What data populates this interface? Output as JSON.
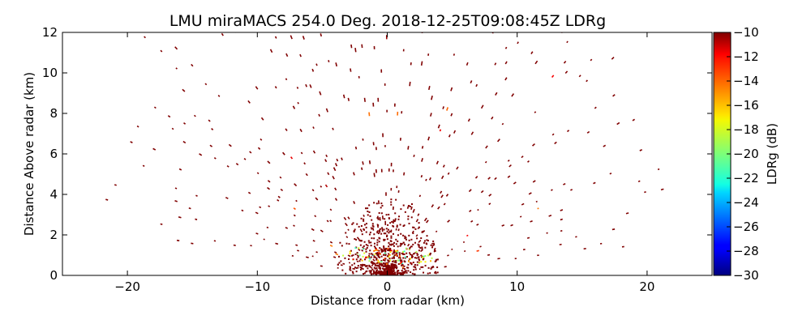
{
  "chart_data": {
    "type": "heatmap",
    "title": "LMU miraMACS 254.0 Deg. 2018-12-25T09:08:45Z  LDRg",
    "xlabel": "Distance from radar (km)",
    "ylabel": "Distance Above radar  (km)",
    "xlim": [
      -25,
      25
    ],
    "ylim": [
      0,
      12
    ],
    "x_ticks": [
      -20,
      -10,
      0,
      10,
      20
    ],
    "x_tick_labels": [
      "−20",
      "−10",
      "0",
      "10",
      "20"
    ],
    "y_ticks": [
      0,
      2,
      4,
      6,
      8,
      10,
      12
    ],
    "y_tick_labels": [
      "0",
      "2",
      "4",
      "6",
      "8",
      "10",
      "12"
    ],
    "colorbar": {
      "label": "LDRg (dB)",
      "range": [
        -30,
        -10
      ],
      "ticks": [
        -30,
        -28,
        -26,
        -24,
        -22,
        -20,
        -18,
        -16,
        -14,
        -12,
        -10
      ],
      "tick_labels": [
        "−30",
        "−28",
        "−26",
        "−24",
        "−22",
        "−20",
        "−18",
        "−16",
        "−14",
        "−12",
        "−10"
      ],
      "colormap": "jet"
    },
    "scan": {
      "max_range_km": 22,
      "min_elevation_deg": 5,
      "max_elevation_deg": 175,
      "dominant_value_db": -10,
      "near_field_radius_km": 4
    }
  }
}
